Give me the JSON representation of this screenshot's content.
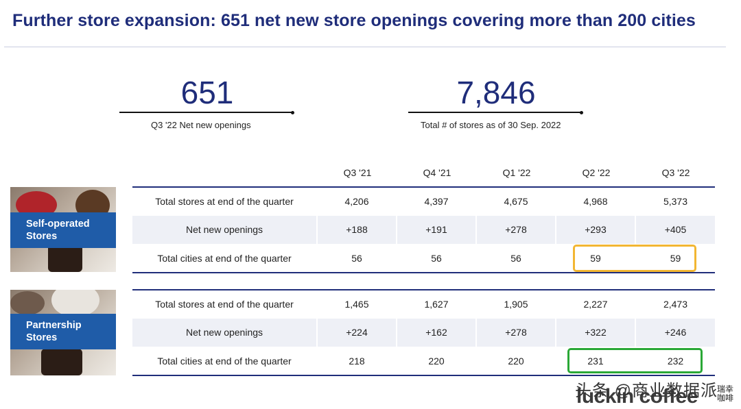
{
  "title": "Further store expansion: 651 net new store openings covering more than 200 cities",
  "kpis": [
    {
      "value": "651",
      "caption": "Q3 '22  Net new openings"
    },
    {
      "value": "7,846",
      "caption": "Total # of stores as of 30 Sep. 2022"
    }
  ],
  "table": {
    "columns": [
      "Q3 '21",
      "Q4 '21",
      "Q1 '22",
      "Q2 '22",
      "Q3 '22"
    ],
    "segments": [
      {
        "label": "Self-operated\nStores",
        "label_line1": "Self-operated",
        "label_line2": "Stores",
        "rows": [
          {
            "label": "Total stores at end of the quarter",
            "values": [
              "4,206",
              "4,397",
              "4,675",
              "4,968",
              "5,373"
            ]
          },
          {
            "label": "Net new openings",
            "values": [
              "+188",
              "+191",
              "+278",
              "+293",
              "+405"
            ]
          },
          {
            "label": "Total cities at end of the quarter",
            "values": [
              "56",
              "56",
              "56",
              "59",
              "59"
            ]
          }
        ],
        "highlight_color": "#f2b632"
      },
      {
        "label": "Partnership\nStores",
        "label_line1": "Partnership",
        "label_line2": "Stores",
        "rows": [
          {
            "label": "Total stores at end of the quarter",
            "values": [
              "1,465",
              "1,627",
              "1,905",
              "2,227",
              "2,473"
            ]
          },
          {
            "label": "Net new openings",
            "values": [
              "+224",
              "+162",
              "+278",
              "+322",
              "+246"
            ]
          },
          {
            "label": "Total cities at end of the quarter",
            "values": [
              "218",
              "220",
              "220",
              "231",
              "232"
            ]
          }
        ],
        "highlight_color": "#2aa836"
      }
    ]
  },
  "footer": {
    "watermark": "头条 @商业数据派",
    "brand": "luckin coffee",
    "brand_cn": "瑞幸咖啡"
  },
  "colors": {
    "title": "#1f2d7a",
    "rule": "#1f2d7a",
    "segment_label_bg": "#1f5ca8",
    "row_shade": "#eef0f6"
  }
}
